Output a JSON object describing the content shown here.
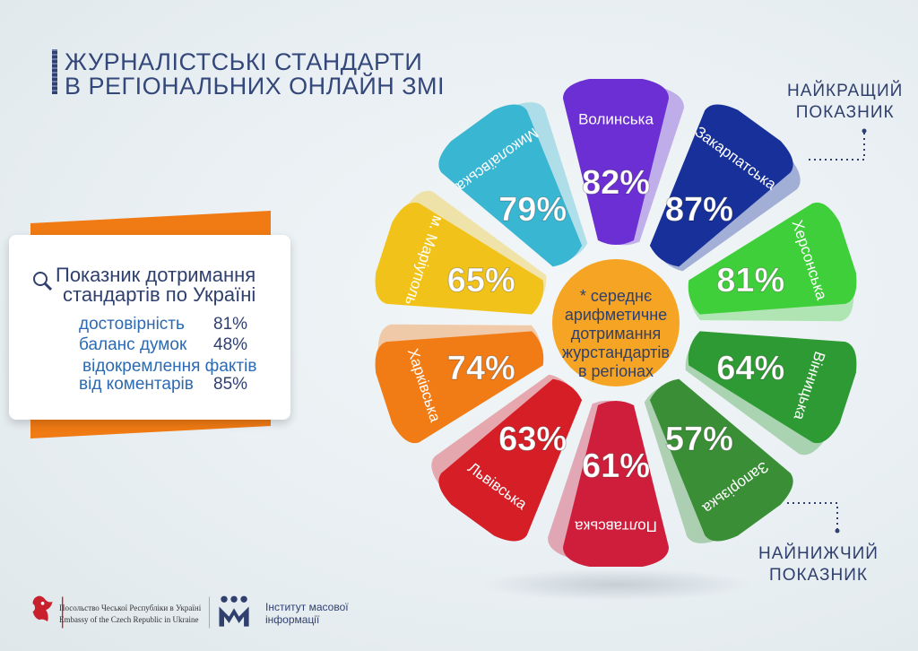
{
  "title": {
    "line1": "ЖУРНАЛІСТСЬКІ СТАНДАРТИ",
    "line2": "В РЕГІОНАЛЬНИХ ОНЛАЙН ЗМІ"
  },
  "card": {
    "title_line1": "Показник дотримання",
    "title_line2": "стандартів по Україні",
    "rows": [
      {
        "label": "достовірність",
        "value": "81%"
      },
      {
        "label": "баланс думок",
        "value": "48%"
      },
      {
        "label": "відокремлення фактів",
        "value": ""
      },
      {
        "label": "від коментарів",
        "value": "85%"
      }
    ]
  },
  "center_note": {
    "lines": [
      "* середнє",
      "арифметичне",
      "дотримання",
      "журстандартів",
      "в регіонах"
    ]
  },
  "best_label": {
    "line1": "НАЙКРАЩИЙ",
    "line2": "ПОКАЗНИК"
  },
  "worst_label": {
    "line1": "НАЙНИЖЧИЙ",
    "line2": "ПОКАЗНИК"
  },
  "footer": {
    "embassy_ua": "Посольство Чеської Республіки в Україні",
    "embassy_en": "Embassy of the Czech Republic in Ukraine",
    "imi_line1": "Інститут масової",
    "imi_line2": "інформації"
  },
  "chart_data": {
    "type": "bar",
    "categories": [
      "Волинська",
      "Закарпатська",
      "Херсонська",
      "Вінницька",
      "Запорізька",
      "Полтавська",
      "Львівська",
      "Харківська",
      "м. Маріуполь",
      "Миколаївська"
    ],
    "values": [
      82,
      87,
      81,
      64,
      57,
      61,
      63,
      74,
      65,
      79
    ],
    "value_labels": [
      "82%",
      "87%",
      "81%",
      "64%",
      "57%",
      "61%",
      "63%",
      "74%",
      "65%",
      "79%"
    ],
    "colors": [
      "#6b2fd3",
      "#17309a",
      "#3fcf3a",
      "#2e9a34",
      "#3a8f36",
      "#cf1e3c",
      "#d61e27",
      "#f17c16",
      "#f1c31a",
      "#38b6d2"
    ]
  }
}
